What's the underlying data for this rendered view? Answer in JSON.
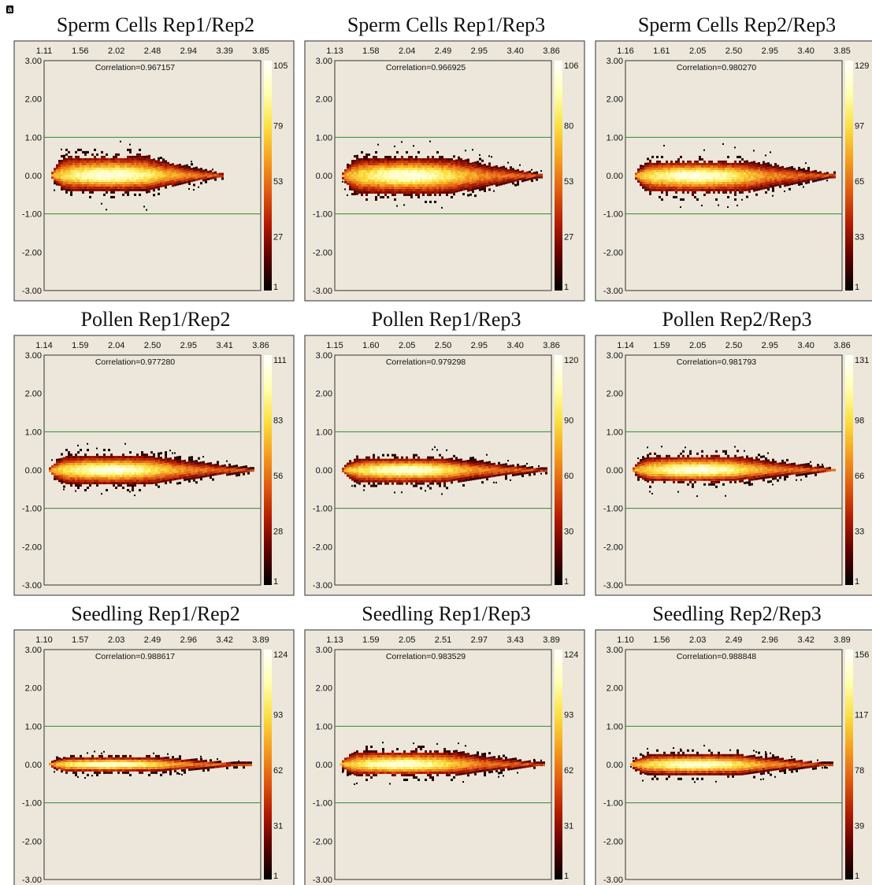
{
  "figure_label": "a",
  "colors": {
    "panel_bg": "#ece7da",
    "frame": "#505050",
    "threshold_line": "#2e8b2e",
    "density_scale": [
      "#000000",
      "#5a0000",
      "#b01a00",
      "#e05a10",
      "#f5a020",
      "#fbe040",
      "#ffffb0",
      "#ffffff"
    ]
  },
  "chart_data": [
    {
      "type": "heatmap",
      "title": "Sperm Cells Rep1/Rep2",
      "correlation_text": "Correlation=0.967157",
      "x_ticks": [
        "1.11",
        "1.56",
        "2.02",
        "2.48",
        "2.94",
        "3.39",
        "3.85"
      ],
      "y_ticks": [
        "3.00",
        "2.00",
        "1.00",
        "0.00",
        "-1.00",
        "-2.00",
        "-3.00"
      ],
      "ylim": [
        -3,
        3
      ],
      "threshold_lines": [
        1,
        -1
      ],
      "colorbar_ticks": [
        "105",
        "79",
        "53",
        "27",
        "1"
      ],
      "density": {
        "spread_up": 0.55,
        "spread_down": 0.45,
        "taper_start": 0.55,
        "tail_width": 0.08,
        "left": 0.03,
        "right": 0.82,
        "peak_center": 0.3
      }
    },
    {
      "type": "heatmap",
      "title": "Sperm Cells Rep1/Rep3",
      "correlation_text": "Correlation=0.966925",
      "x_ticks": [
        "1.13",
        "1.58",
        "2.04",
        "2.49",
        "2.95",
        "3.40",
        "3.86"
      ],
      "y_ticks": [
        "3.00",
        "2.00",
        "1.00",
        "0.00",
        "-1.00",
        "-2.00",
        "-3.00"
      ],
      "ylim": [
        -3,
        3
      ],
      "threshold_lines": [
        1,
        -1
      ],
      "colorbar_ticks": [
        "106",
        "80",
        "53",
        "27",
        "1"
      ],
      "density": {
        "spread_up": 0.52,
        "spread_down": 0.55,
        "taper_start": 0.55,
        "tail_width": 0.08,
        "left": 0.03,
        "right": 0.95,
        "peak_center": 0.33
      }
    },
    {
      "type": "heatmap",
      "title": "Sperm Cells Rep2/Rep3",
      "correlation_text": "Correlation=0.980270",
      "x_ticks": [
        "1.16",
        "1.61",
        "2.05",
        "2.50",
        "2.95",
        "3.40",
        "3.85"
      ],
      "y_ticks": [
        "3.00",
        "2.00",
        "1.00",
        "0.00",
        "-1.00",
        "-2.00",
        "-3.00"
      ],
      "ylim": [
        -3,
        3
      ],
      "threshold_lines": [
        1,
        -1
      ],
      "colorbar_ticks": [
        "129",
        "97",
        "65",
        "33",
        "1"
      ],
      "density": {
        "spread_up": 0.42,
        "spread_down": 0.5,
        "taper_start": 0.55,
        "tail_width": 0.07,
        "left": 0.04,
        "right": 0.97,
        "peak_center": 0.32
      }
    },
    {
      "type": "heatmap",
      "title": "Pollen Rep1/Rep2",
      "correlation_text": "Correlation=0.977280",
      "x_ticks": [
        "1.14",
        "1.59",
        "2.04",
        "2.50",
        "2.95",
        "3.41",
        "3.86"
      ],
      "y_ticks": [
        "3.00",
        "2.00",
        "1.00",
        "0.00",
        "-1.00",
        "-2.00",
        "-3.00"
      ],
      "ylim": [
        -3,
        3
      ],
      "threshold_lines": [
        1,
        -1
      ],
      "colorbar_ticks": [
        "111",
        "83",
        "56",
        "28",
        "1"
      ],
      "density": {
        "spread_up": 0.42,
        "spread_down": 0.42,
        "taper_start": 0.5,
        "tail_width": 0.06,
        "left": 0.02,
        "right": 0.97,
        "peak_center": 0.3
      }
    },
    {
      "type": "heatmap",
      "title": "Pollen Rep1/Rep3",
      "correlation_text": "Correlation=0.979298",
      "x_ticks": [
        "1.15",
        "1.60",
        "2.05",
        "2.50",
        "2.95",
        "3.40",
        "3.86"
      ],
      "y_ticks": [
        "3.00",
        "2.00",
        "1.00",
        "0.00",
        "-1.00",
        "-2.00",
        "-3.00"
      ],
      "ylim": [
        -3,
        3
      ],
      "threshold_lines": [
        1,
        -1
      ],
      "colorbar_ticks": [
        "120",
        "90",
        "60",
        "30",
        "1"
      ],
      "density": {
        "spread_up": 0.35,
        "spread_down": 0.38,
        "taper_start": 0.5,
        "tail_width": 0.06,
        "left": 0.03,
        "right": 0.98,
        "peak_center": 0.32
      }
    },
    {
      "type": "heatmap",
      "title": "Pollen Rep2/Rep3",
      "correlation_text": "Correlation=0.981793",
      "x_ticks": [
        "1.14",
        "1.59",
        "2.05",
        "2.50",
        "2.95",
        "3.40",
        "3.86"
      ],
      "y_ticks": [
        "3.00",
        "2.00",
        "1.00",
        "0.00",
        "-1.00",
        "-2.00",
        "-3.00"
      ],
      "ylim": [
        -3,
        3
      ],
      "threshold_lines": [
        1,
        -1
      ],
      "colorbar_ticks": [
        "131",
        "98",
        "66",
        "33",
        "1"
      ],
      "density": {
        "spread_up": 0.42,
        "spread_down": 0.35,
        "taper_start": 0.5,
        "tail_width": 0.06,
        "left": 0.03,
        "right": 0.97,
        "peak_center": 0.33
      }
    },
    {
      "type": "heatmap",
      "title": "Seedling Rep1/Rep2",
      "correlation_text": "Correlation=0.988617",
      "x_ticks": [
        "1.10",
        "1.57",
        "2.03",
        "2.49",
        "2.96",
        "3.42",
        "3.89"
      ],
      "y_ticks": [
        "3.00",
        "2.00",
        "1.00",
        "0.00",
        "-1.00",
        "-2.00",
        "-3.00"
      ],
      "ylim": [
        -3,
        3
      ],
      "threshold_lines": [
        1,
        -1
      ],
      "colorbar_ticks": [
        "124",
        "93",
        "62",
        "31",
        "1"
      ],
      "density": {
        "spread_up": 0.22,
        "spread_down": 0.22,
        "taper_start": 0.55,
        "tail_width": 0.06,
        "left": 0.02,
        "right": 0.95,
        "peak_center": 0.3
      }
    },
    {
      "type": "heatmap",
      "title": "Seedling Rep1/Rep3",
      "correlation_text": "Correlation=0.983529",
      "x_ticks": [
        "1.13",
        "1.59",
        "2.05",
        "2.51",
        "2.97",
        "3.43",
        "3.89"
      ],
      "y_ticks": [
        "3.00",
        "2.00",
        "1.00",
        "0.00",
        "-1.00",
        "-2.00",
        "-3.00"
      ],
      "ylim": [
        -3,
        3
      ],
      "threshold_lines": [
        1,
        -1
      ],
      "colorbar_ticks": [
        "124",
        "93",
        "62",
        "31",
        "1"
      ],
      "density": {
        "spread_up": 0.38,
        "spread_down": 0.32,
        "taper_start": 0.55,
        "tail_width": 0.07,
        "left": 0.02,
        "right": 0.97,
        "peak_center": 0.3
      }
    },
    {
      "type": "heatmap",
      "title": "Seedling Rep2/Rep3",
      "correlation_text": "Correlation=0.988848",
      "x_ticks": [
        "1.10",
        "1.56",
        "2.03",
        "2.49",
        "2.96",
        "3.42",
        "3.89"
      ],
      "y_ticks": [
        "3.00",
        "2.00",
        "1.00",
        "0.00",
        "-1.00",
        "-2.00",
        "-3.00"
      ],
      "ylim": [
        -3,
        3
      ],
      "threshold_lines": [
        1,
        -1
      ],
      "colorbar_ticks": [
        "156",
        "117",
        "78",
        "39",
        "1"
      ],
      "density": {
        "spread_up": 0.3,
        "spread_down": 0.3,
        "taper_start": 0.55,
        "tail_width": 0.06,
        "left": 0.02,
        "right": 0.95,
        "peak_center": 0.32
      }
    }
  ]
}
